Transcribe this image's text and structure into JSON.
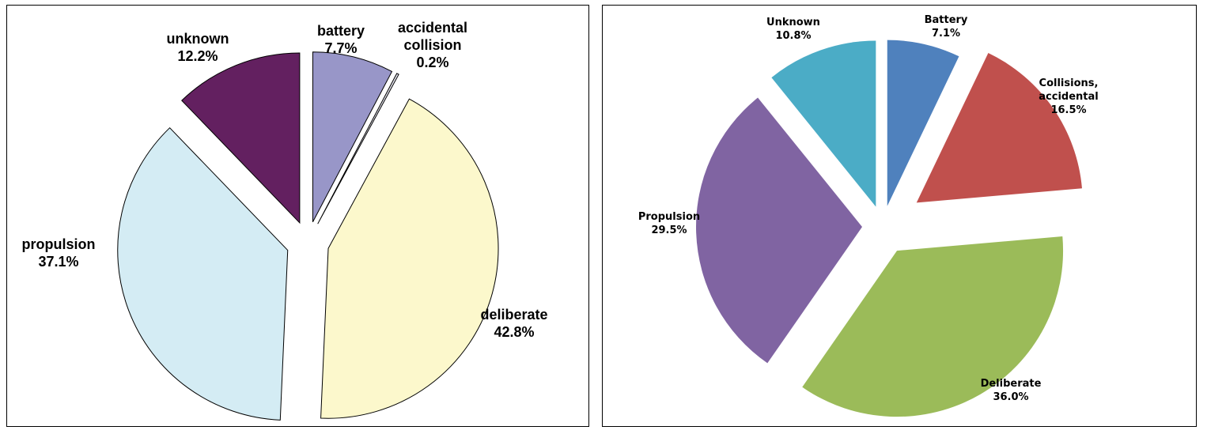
{
  "chart_data": [
    {
      "type": "pie",
      "exploded": true,
      "slices": [
        {
          "label": "battery",
          "value": 7.7,
          "value_label": "7.7%",
          "color": "#9896c8"
        },
        {
          "label": "accidental collision",
          "value": 0.2,
          "value_label": "0.2%",
          "color": "#e6e6f0"
        },
        {
          "label": "deliberate",
          "value": 42.8,
          "value_label": "42.8%",
          "color": "#fcf8cc"
        },
        {
          "label": "propulsion",
          "value": 37.1,
          "value_label": "37.1%",
          "color": "#d4ecf4"
        },
        {
          "label": "unknown",
          "value": 12.2,
          "value_label": "12.2%",
          "color": "#632060"
        }
      ],
      "legend": "none"
    },
    {
      "type": "pie",
      "exploded": true,
      "slices": [
        {
          "label": "Battery",
          "value": 7.1,
          "value_label": "7.1%",
          "color": "#4f81bd"
        },
        {
          "label": "Collisions, accidental",
          "value": 16.5,
          "value_label": "16.5%",
          "color": "#c0504d"
        },
        {
          "label": "Deliberate",
          "value": 36.0,
          "value_label": "36.0%",
          "color": "#9bbb59"
        },
        {
          "label": "Propulsion",
          "value": 29.5,
          "value_label": "29.5%",
          "color": "#8064a2"
        },
        {
          "label": "Unknown",
          "value": 10.8,
          "value_label": "10.8%",
          "color": "#4bacc6"
        }
      ],
      "legend": "none"
    }
  ]
}
